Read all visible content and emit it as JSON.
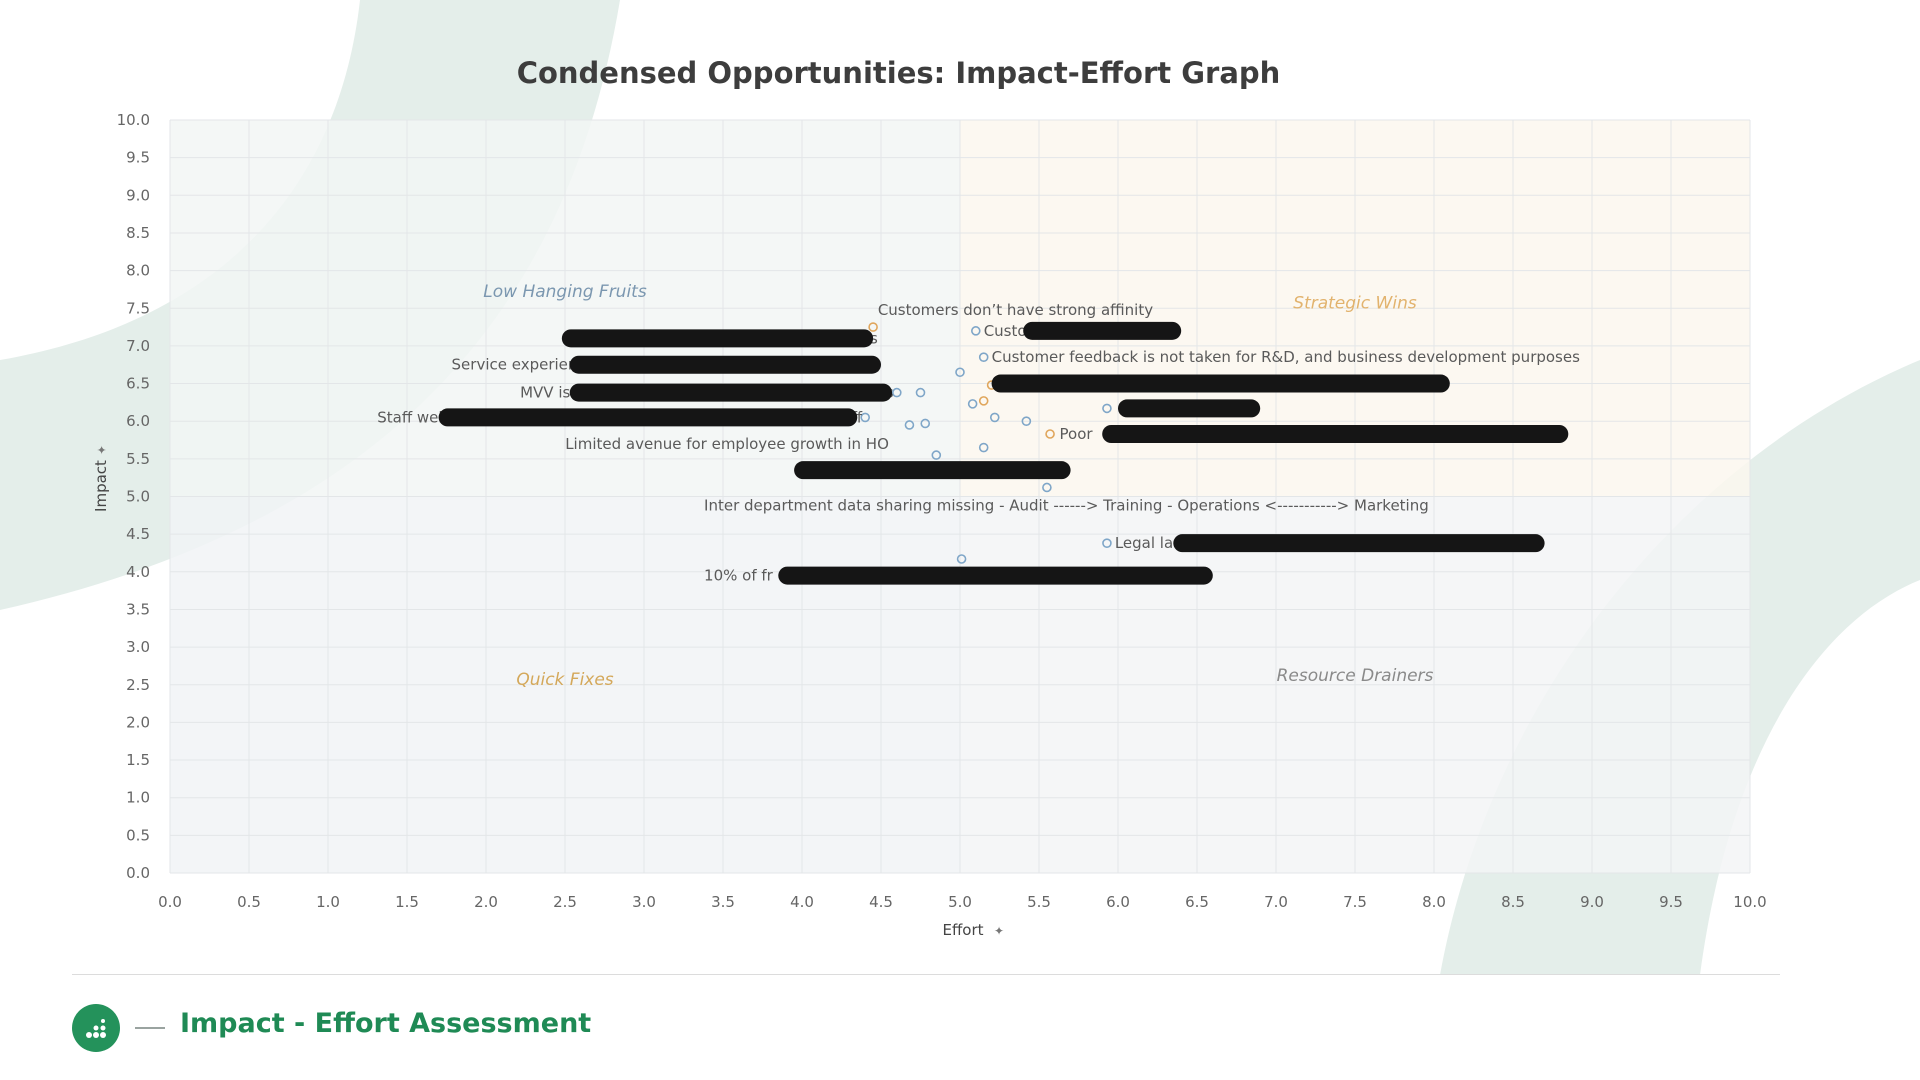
{
  "page": {
    "title": "Condensed Opportunities: Impact-Effort Graph",
    "footer_title": "Impact - Effort Assessment",
    "footer_icon": "grid-dots-icon"
  },
  "colors": {
    "quadrant_low_hanging": "#f2f6f5",
    "quadrant_strategic": "#fcf7ef",
    "quadrant_quick": "#f1f3f6",
    "quadrant_drainers": "#f3f5f6",
    "marker_blue": "#7fa6c8",
    "marker_orange": "#e0a65c",
    "redaction": "#151515",
    "accent_green": "#24925b"
  },
  "chart_data": {
    "type": "scatter",
    "title": "Condensed Opportunities: Impact-Effort Graph",
    "xlabel": "Effort",
    "ylabel": "Impact",
    "xlim": [
      0,
      10
    ],
    "ylim": [
      0,
      10
    ],
    "x_ticks": [
      "0.0",
      "0.5",
      "1.0",
      "1.5",
      "2.0",
      "2.5",
      "3.0",
      "3.5",
      "4.0",
      "4.5",
      "5.0",
      "5.5",
      "6.0",
      "6.5",
      "7.0",
      "7.5",
      "8.0",
      "8.5",
      "9.0",
      "9.5",
      "10.0"
    ],
    "y_ticks": [
      "0.0",
      "0.5",
      "1.0",
      "1.5",
      "2.0",
      "2.5",
      "3.0",
      "3.5",
      "4.0",
      "4.5",
      "5.0",
      "5.5",
      "6.0",
      "6.5",
      "7.0",
      "7.5",
      "8.0",
      "8.5",
      "9.0",
      "9.5",
      "10.0"
    ],
    "grid": true,
    "quadrants": [
      {
        "label": "Low Hanging Fruits",
        "x": 2.5,
        "y": 7.65,
        "color": "#7b97b0",
        "fill": "quadrant_low_hanging",
        "x0": 0,
        "x1": 5,
        "y0": 5,
        "y1": 10
      },
      {
        "label": "Strategic Wins",
        "x": 7.5,
        "y": 7.5,
        "color": "#e2b36e",
        "fill": "quadrant_strategic",
        "x0": 5,
        "x1": 10,
        "y0": 5,
        "y1": 10
      },
      {
        "label": "Quick Fixes",
        "x": 2.5,
        "y": 2.5,
        "color": "#d4a85a",
        "fill": "quadrant_quick",
        "x0": 0,
        "x1": 5,
        "y0": 0,
        "y1": 5
      },
      {
        "label": "Resource Drainers",
        "x": 7.5,
        "y": 2.55,
        "color": "#8a8a8a",
        "fill": "quadrant_drainers",
        "x0": 5,
        "x1": 10,
        "y0": 0,
        "y1": 5
      }
    ],
    "points": [
      {
        "x": 4.45,
        "y": 7.25,
        "color": "orange"
      },
      {
        "x": 5.1,
        "y": 7.2,
        "color": "blue"
      },
      {
        "x": 4.45,
        "y": 6.75,
        "color": "blue"
      },
      {
        "x": 5.15,
        "y": 6.85,
        "color": "blue"
      },
      {
        "x": 5.0,
        "y": 6.65,
        "color": "blue"
      },
      {
        "x": 5.2,
        "y": 6.48,
        "color": "orange"
      },
      {
        "x": 4.6,
        "y": 6.38,
        "color": "blue"
      },
      {
        "x": 4.75,
        "y": 6.38,
        "color": "blue"
      },
      {
        "x": 5.08,
        "y": 6.23,
        "color": "blue"
      },
      {
        "x": 5.15,
        "y": 6.27,
        "color": "orange"
      },
      {
        "x": 5.93,
        "y": 6.17,
        "color": "blue"
      },
      {
        "x": 4.4,
        "y": 6.05,
        "color": "blue"
      },
      {
        "x": 5.22,
        "y": 6.05,
        "color": "blue"
      },
      {
        "x": 5.42,
        "y": 6.0,
        "color": "blue"
      },
      {
        "x": 4.68,
        "y": 5.95,
        "color": "blue"
      },
      {
        "x": 4.78,
        "y": 5.97,
        "color": "blue"
      },
      {
        "x": 5.57,
        "y": 5.83,
        "color": "orange"
      },
      {
        "x": 5.15,
        "y": 5.65,
        "color": "blue"
      },
      {
        "x": 4.85,
        "y": 5.55,
        "color": "blue"
      },
      {
        "x": 5.55,
        "y": 5.12,
        "color": "blue"
      },
      {
        "x": 5.93,
        "y": 4.38,
        "color": "blue"
      },
      {
        "x": 5.01,
        "y": 4.17,
        "color": "blue"
      }
    ],
    "annotations": [
      {
        "text": "Customers don’t have strong affinity",
        "x": 4.48,
        "y": 7.48,
        "anchor": "start"
      },
      {
        "text": "Custo",
        "x": 5.15,
        "y": 7.2,
        "anchor": "start",
        "redaction": {
          "x0": 5.4,
          "x1": 6.4
        }
      },
      {
        "text": "Service landscape - Toilets and Seatings",
        "x": 4.48,
        "y": 7.1,
        "anchor": "end",
        "redaction": {
          "x0": 2.48,
          "x1": 4.45
        }
      },
      {
        "text": "Customer feedback is not taken for R&D, and business development purposes",
        "x": 5.2,
        "y": 6.85,
        "anchor": "start"
      },
      {
        "text": "Service experience not at par with the premium charged",
        "x": 4.48,
        "y": 6.75,
        "anchor": "end",
        "redaction": {
          "x0": 2.53,
          "x1": 4.5
        }
      },
      {
        "text": "",
        "x": 5.22,
        "y": 6.5,
        "anchor": "start",
        "redaction": {
          "x0": 5.2,
          "x1": 8.1
        }
      },
      {
        "text": "MVV is not being translated and realized in stores",
        "x": 4.58,
        "y": 6.38,
        "anchor": "end",
        "redaction": {
          "x0": 2.53,
          "x1": 4.57
        }
      },
      {
        "text": "",
        "x": 6.0,
        "y": 6.17,
        "anchor": "start",
        "redaction": {
          "x0": 6.0,
          "x1": 6.9
        }
      },
      {
        "text": "Staff welfare and compensation not being realized for store staff",
        "x": 4.38,
        "y": 6.05,
        "anchor": "end",
        "redaction": {
          "x0": 1.7,
          "x1": 4.35
        }
      },
      {
        "text": "Poor",
        "x": 5.63,
        "y": 5.83,
        "anchor": "start",
        "redaction": {
          "x0": 5.9,
          "x1": 8.85
        }
      },
      {
        "text": "Limited avenue for employee growth in HO",
        "x": 4.55,
        "y": 5.7,
        "anchor": "end"
      },
      {
        "text": "",
        "x": 3.95,
        "y": 5.35,
        "anchor": "start",
        "redaction": {
          "x0": 3.95,
          "x1": 5.7
        }
      },
      {
        "text": "Inter department data sharing missing - Audit ------> Training - Operations <-----------> Marketing",
        "x": 3.38,
        "y": 4.88,
        "anchor": "start"
      },
      {
        "text": "Legal la",
        "x": 5.98,
        "y": 4.38,
        "anchor": "start",
        "redaction": {
          "x0": 6.35,
          "x1": 8.7
        }
      },
      {
        "text": "10% of fr",
        "x": 3.38,
        "y": 3.95,
        "anchor": "start",
        "redaction": {
          "x0": 3.85,
          "x1": 6.6
        }
      }
    ]
  }
}
